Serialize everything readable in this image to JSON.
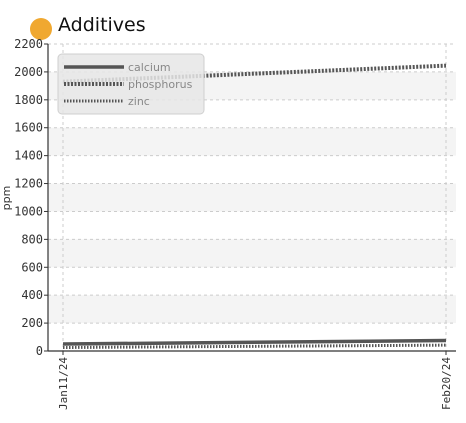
{
  "header": {
    "title": "Additives"
  },
  "colors": {
    "status_dot": "#f0a830",
    "band": "#f4f4f4",
    "grid": "#cccccc",
    "series": "#555555"
  },
  "chart_data": {
    "type": "line",
    "title": "Additives",
    "xlabel": "",
    "ylabel": "ppm",
    "x_ticks": [
      "Jan11/24",
      "Feb20/24"
    ],
    "ylim": [
      0,
      2200
    ],
    "y_ticks": [
      0,
      200,
      400,
      600,
      800,
      1000,
      1200,
      1400,
      1600,
      1800,
      2000,
      2200
    ],
    "grid": true,
    "legend": "top-left",
    "series": [
      {
        "name": "calcium",
        "style": "solid",
        "points": [
          [
            "Jan11/24",
            50
          ],
          [
            "Feb20/24",
            75
          ]
        ]
      },
      {
        "name": "phosphorus",
        "style": "dotted-thick",
        "points": [
          [
            "Jan11/24",
            1930
          ],
          [
            "Feb20/24",
            2045
          ]
        ]
      },
      {
        "name": "zinc",
        "style": "dotted",
        "points": [
          [
            "Jan11/24",
            25
          ],
          [
            "Feb20/24",
            42
          ]
        ]
      }
    ]
  }
}
